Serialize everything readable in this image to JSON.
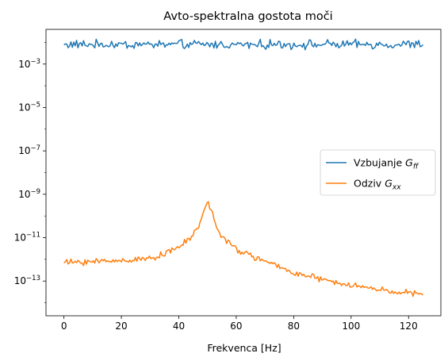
{
  "chart_data": {
    "type": "line",
    "title": "Avto-spektralna gostota moči",
    "xlabel": "Frekvenca [Hz]",
    "ylabel": "",
    "xlim": [
      -6.25,
      131.25
    ],
    "ylim_log10": [
      -14.6,
      -1.4
    ],
    "yscale": "log",
    "grid": false,
    "legend_placement": "center-right",
    "x_ticks": [
      0,
      20,
      40,
      60,
      80,
      100,
      120
    ],
    "x_tick_labels": [
      "0",
      "20",
      "40",
      "60",
      "80",
      "100",
      "120"
    ],
    "y_ticks_log10": [
      -3,
      -5,
      -7,
      -9,
      -11,
      -13
    ],
    "y_tick_base": "10",
    "y_tick_exponents": [
      "−3",
      "−5",
      "−7",
      "−9",
      "−11",
      "−13"
    ],
    "series": [
      {
        "name": "Vzbujanje",
        "name_math_base": "G",
        "name_math_sub": "ff",
        "color": "#1f77b4",
        "x_range": [
          0,
          125
        ],
        "log10_profile": [
          [
            0,
            -2.1
          ],
          [
            125,
            -2.1
          ]
        ],
        "log10_noise_amplitude": 0.25
      },
      {
        "name": "Odziv",
        "name_math_base": "G",
        "name_math_sub": "xx",
        "color": "#ff7f0e",
        "x_range": [
          0,
          125
        ],
        "log10_profile": [
          [
            0,
            -12.15
          ],
          [
            10,
            -12.1
          ],
          [
            20,
            -12.05
          ],
          [
            30,
            -11.95
          ],
          [
            38,
            -11.6
          ],
          [
            42,
            -11.25
          ],
          [
            45,
            -10.85
          ],
          [
            47,
            -10.5
          ],
          [
            48.5,
            -9.9
          ],
          [
            50,
            -9.25
          ],
          [
            51.5,
            -9.8
          ],
          [
            53,
            -10.5
          ],
          [
            56,
            -11.1
          ],
          [
            60,
            -11.55
          ],
          [
            70,
            -12.1
          ],
          [
            80,
            -12.6
          ],
          [
            90,
            -12.95
          ],
          [
            100,
            -13.2
          ],
          [
            110,
            -13.4
          ],
          [
            120,
            -13.55
          ],
          [
            125,
            -13.65
          ]
        ],
        "log10_noise_amplitude": 0.18
      }
    ]
  }
}
